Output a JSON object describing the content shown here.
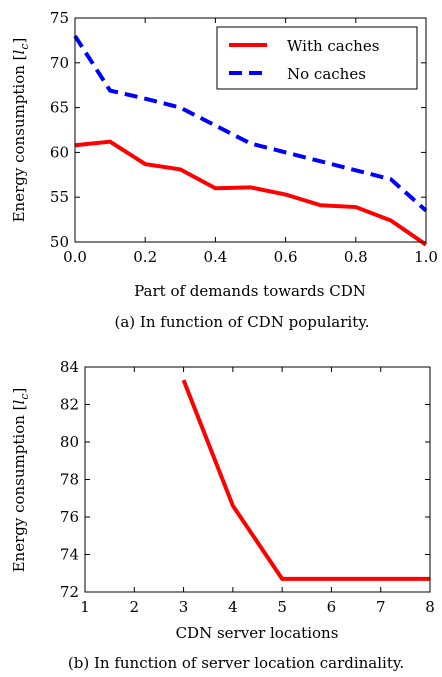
{
  "chart_data": [
    {
      "type": "line",
      "xlabel": "Part of demands towards CDN",
      "ylabel": "Energy consumption [l_c]",
      "ylabel_main": "Energy consumption ",
      "ylabel_unit": "l",
      "ylabel_sub": "c",
      "xlim": [
        0.0,
        1.0
      ],
      "ylim": [
        50,
        75
      ],
      "xticks": [
        "0.0",
        "0.2",
        "0.4",
        "0.6",
        "0.8",
        "1.0"
      ],
      "yticks": [
        "50",
        "55",
        "60",
        "65",
        "70",
        "75"
      ],
      "legend_position": "top-right",
      "caption": "(a) In function of CDN popularity.",
      "series": [
        {
          "name": "With caches",
          "color": "#ff0000",
          "style": "solid",
          "x": [
            0.0,
            0.1,
            0.2,
            0.3,
            0.4,
            0.5,
            0.6,
            0.7,
            0.8,
            0.9,
            1.0
          ],
          "y": [
            60.8,
            61.2,
            58.7,
            58.1,
            56.0,
            56.1,
            55.3,
            54.1,
            53.9,
            52.4,
            49.7
          ]
        },
        {
          "name": "No caches",
          "color": "#0000ff",
          "style": "dashed",
          "x": [
            0.0,
            0.1,
            0.2,
            0.3,
            0.4,
            0.5,
            0.6,
            0.7,
            0.8,
            0.9,
            1.0
          ],
          "y": [
            73.0,
            66.9,
            66.0,
            65.0,
            63.0,
            61.0,
            60.0,
            59.0,
            58.0,
            57.0,
            53.5
          ]
        }
      ]
    },
    {
      "type": "line",
      "xlabel": "CDN server locations",
      "ylabel": "Energy consumption [l_c]",
      "ylabel_main": "Energy consumption ",
      "ylabel_unit": "l",
      "ylabel_sub": "c",
      "xlim": [
        1,
        8
      ],
      "ylim": [
        72,
        84
      ],
      "xticks": [
        "1",
        "2",
        "3",
        "4",
        "5",
        "6",
        "7",
        "8"
      ],
      "yticks": [
        "72",
        "74",
        "76",
        "78",
        "80",
        "82",
        "84"
      ],
      "caption": "(b) In function of server location cardinality.",
      "series": [
        {
          "color": "#ff0000",
          "style": "solid",
          "x": [
            3,
            4,
            5,
            6,
            7,
            8
          ],
          "y": [
            83.3,
            76.6,
            72.7,
            72.7,
            72.7,
            72.7
          ]
        }
      ]
    }
  ]
}
